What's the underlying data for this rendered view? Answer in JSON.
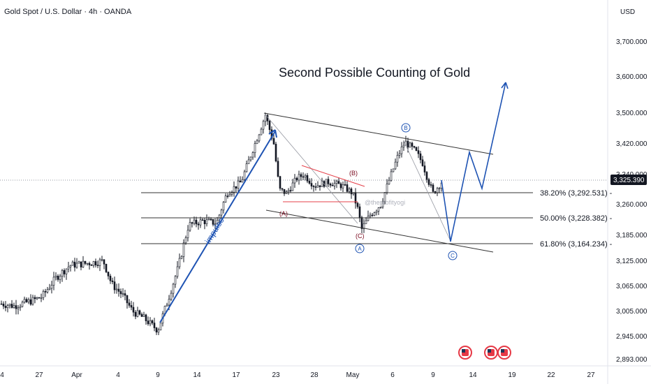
{
  "chart_data": {
    "type": "candlestick",
    "title": "Gold Spot / U.S. Dollar · 4h · OANDA",
    "headline": "Second Possible Counting of Gold",
    "currency": "USD",
    "watermark": "@theprofityogi",
    "last_price": "3,325.390",
    "y_ticks": [
      "3,700.000",
      "3,600.000",
      "3,500.000",
      "3,420.000",
      "3,340.000",
      "3,260.000",
      "3,185.000",
      "3,125.000",
      "3,065.000",
      "3,005.000",
      "2,945.000",
      "2,893.000"
    ],
    "x_ticks": [
      "4",
      "27",
      "Apr",
      "4",
      "9",
      "14",
      "17",
      "23",
      "28",
      "May",
      "6",
      "9",
      "14",
      "19",
      "22",
      "27"
    ],
    "fib_levels": [
      {
        "label": "38.20% (3,292.531)",
        "value": 3292.531
      },
      {
        "label": "50.00% (3,228.382)",
        "value": 3228.382
      },
      {
        "label": "61.80% (3,164.234)",
        "value": 3164.234
      }
    ],
    "annotations": {
      "impulse": "impulse",
      "A_paren": "(A)",
      "B_paren": "(B)",
      "C_paren": "(C)",
      "A_circle": "A",
      "B_circle": "B",
      "C_circle": "C"
    },
    "colors": {
      "up": "#26a69a",
      "down": "#131722",
      "candle": "#131722",
      "wave": "#1e53b3",
      "channel": "#333333",
      "red_wave": "#b2001f",
      "price_tag": "#131722"
    }
  }
}
